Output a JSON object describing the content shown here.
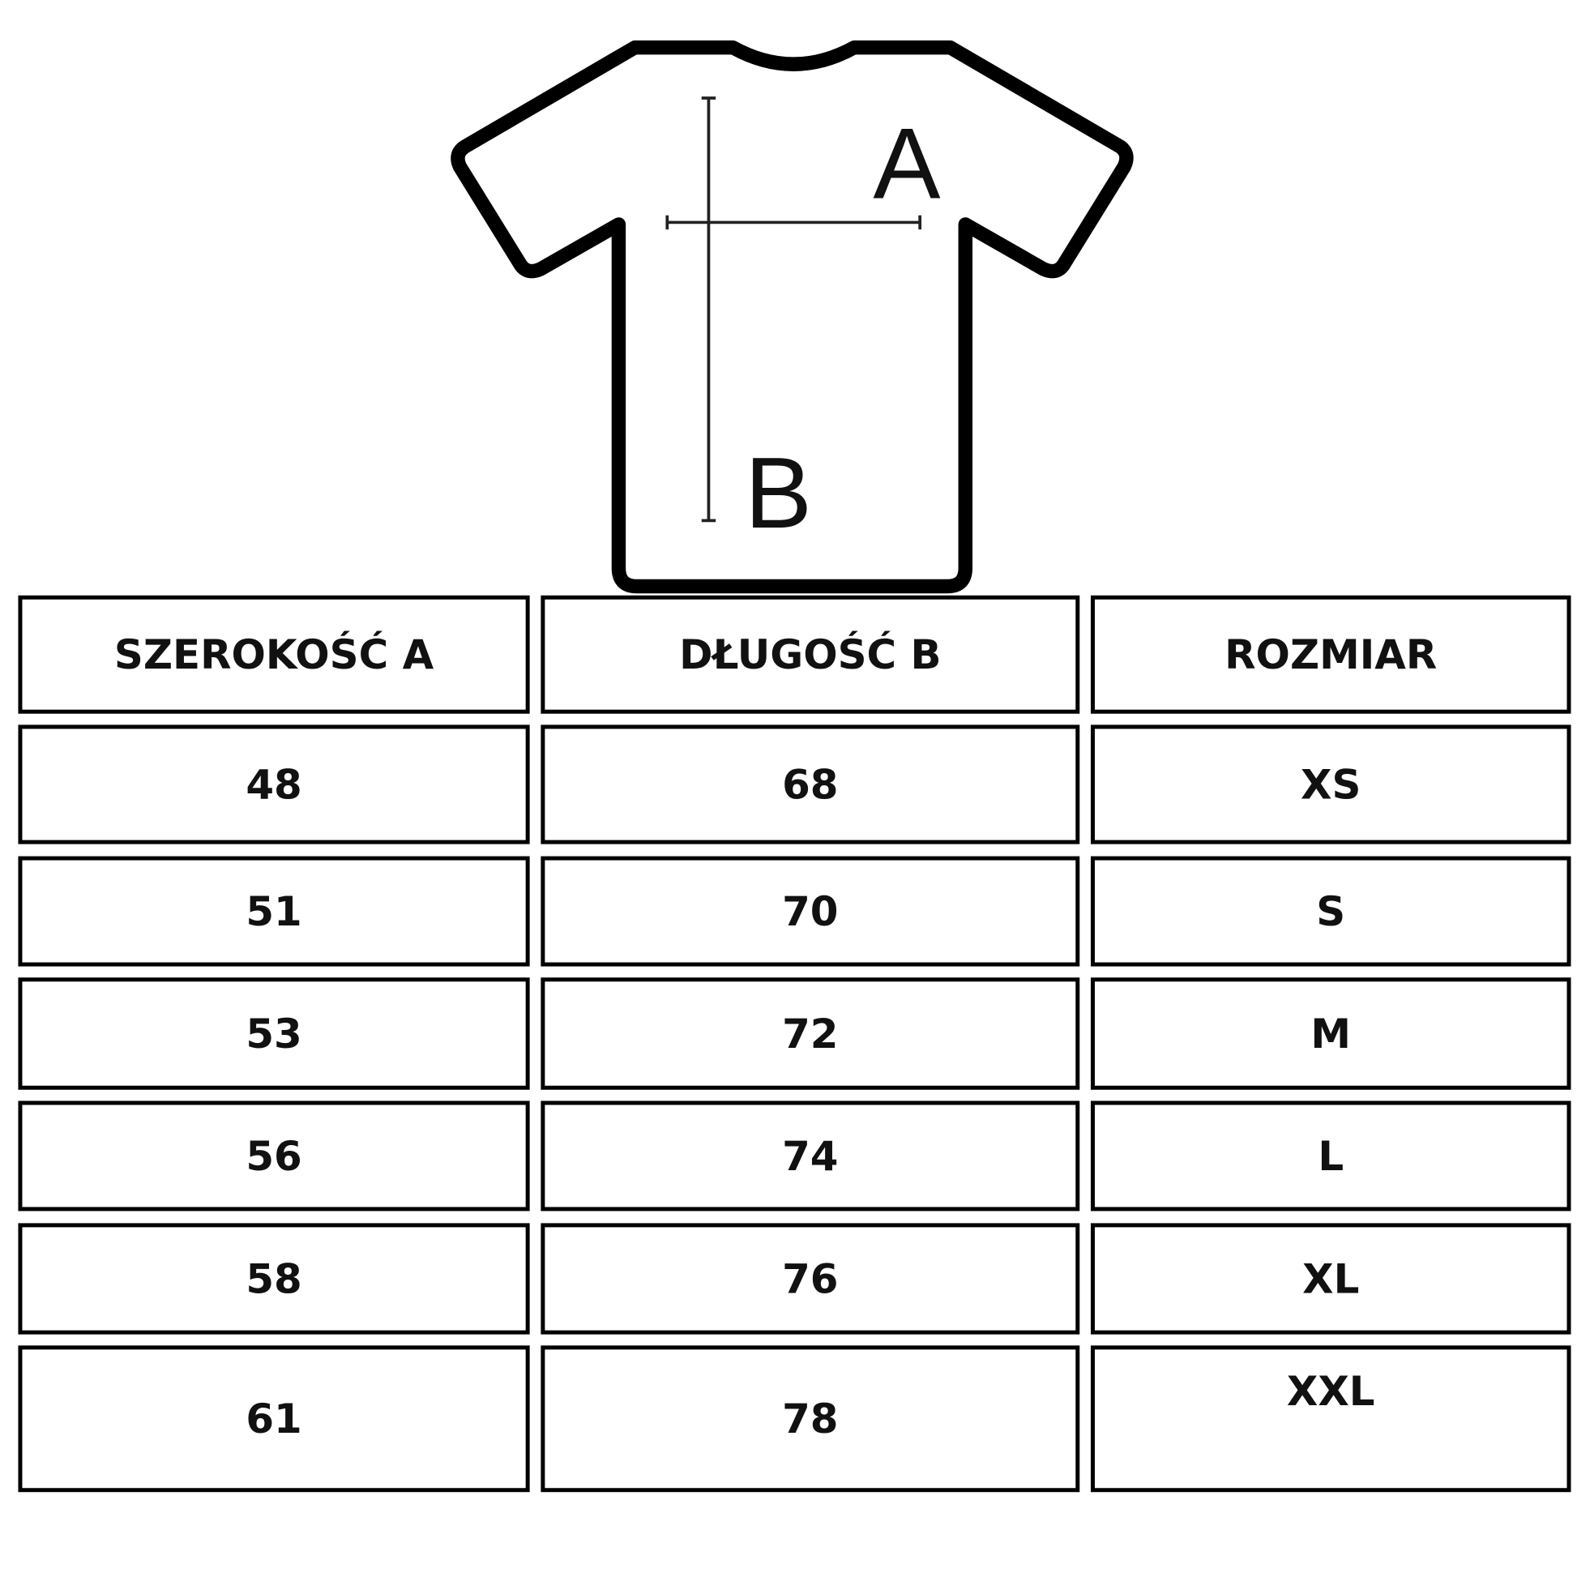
{
  "diagram": {
    "label_a": "A",
    "label_b": "B"
  },
  "table": {
    "headers": [
      "SZEROKOŚĆ A",
      "DŁUGOŚĆ B",
      "ROZMIAR"
    ],
    "rows": [
      [
        "48",
        "68",
        "XS"
      ],
      [
        "51",
        "70",
        "S"
      ],
      [
        "53",
        "72",
        "M"
      ],
      [
        "56",
        "74",
        "L"
      ],
      [
        "58",
        "76",
        "XL"
      ],
      [
        "61",
        "78",
        "XXL"
      ]
    ]
  }
}
